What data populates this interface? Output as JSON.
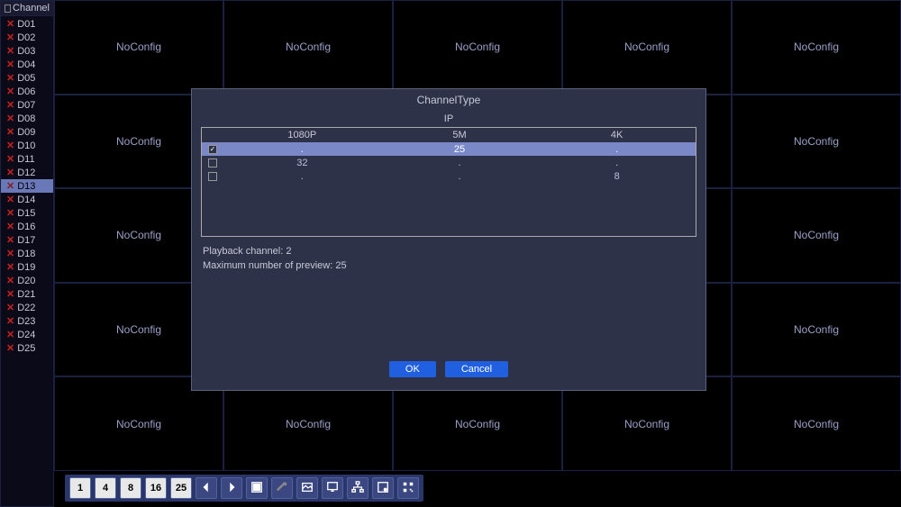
{
  "sidebar": {
    "title": "Channel",
    "items": [
      {
        "label": "D01",
        "selected": false
      },
      {
        "label": "D02",
        "selected": false
      },
      {
        "label": "D03",
        "selected": false
      },
      {
        "label": "D04",
        "selected": false
      },
      {
        "label": "D05",
        "selected": false
      },
      {
        "label": "D06",
        "selected": false
      },
      {
        "label": "D07",
        "selected": false
      },
      {
        "label": "D08",
        "selected": false
      },
      {
        "label": "D09",
        "selected": false
      },
      {
        "label": "D10",
        "selected": false
      },
      {
        "label": "D11",
        "selected": false
      },
      {
        "label": "D12",
        "selected": false
      },
      {
        "label": "D13",
        "selected": true
      },
      {
        "label": "D14",
        "selected": false
      },
      {
        "label": "D15",
        "selected": false
      },
      {
        "label": "D16",
        "selected": false
      },
      {
        "label": "D17",
        "selected": false
      },
      {
        "label": "D18",
        "selected": false
      },
      {
        "label": "D19",
        "selected": false
      },
      {
        "label": "D20",
        "selected": false
      },
      {
        "label": "D21",
        "selected": false
      },
      {
        "label": "D22",
        "selected": false
      },
      {
        "label": "D23",
        "selected": false
      },
      {
        "label": "D24",
        "selected": false
      },
      {
        "label": "D25",
        "selected": false
      }
    ]
  },
  "grid": {
    "cell_label": "NoConfig",
    "rows": 5,
    "cols": 5
  },
  "toolbar": {
    "items": [
      {
        "type": "num",
        "label": "1"
      },
      {
        "type": "num",
        "label": "4"
      },
      {
        "type": "num",
        "label": "8"
      },
      {
        "type": "num",
        "label": "16"
      },
      {
        "type": "num",
        "label": "25"
      },
      {
        "type": "icon",
        "name": "arrow-left-icon"
      },
      {
        "type": "icon",
        "name": "arrow-right-icon"
      },
      {
        "type": "icon",
        "name": "fullscreen-icon"
      },
      {
        "type": "icon",
        "name": "mic-icon"
      },
      {
        "type": "icon",
        "name": "image-icon"
      },
      {
        "type": "icon",
        "name": "monitor-icon"
      },
      {
        "type": "icon",
        "name": "network-icon"
      },
      {
        "type": "icon",
        "name": "disk-icon"
      },
      {
        "type": "icon",
        "name": "qr-icon"
      }
    ]
  },
  "modal": {
    "title": "ChannelType",
    "ip_label": "IP",
    "columns": [
      "1080P",
      "5M",
      "4K"
    ],
    "rows": [
      {
        "checked": true,
        "values": [
          ".",
          "25",
          "."
        ],
        "selected": true
      },
      {
        "checked": false,
        "values": [
          "32",
          ".",
          "."
        ],
        "selected": false
      },
      {
        "checked": false,
        "values": [
          ".",
          ".",
          "8"
        ],
        "selected": false
      }
    ],
    "playback_label": "Playback channel: 2",
    "max_preview_label": "Maximum number of preview: 25",
    "ok_label": "OK",
    "cancel_label": "Cancel"
  },
  "colors": {
    "background": "#000000",
    "border": "#1a2040",
    "text": "#c8c8d8",
    "modal_bg": "#2e3248",
    "selected_row": "#7a88c8",
    "button_bg": "#2060e0",
    "x_mark": "#cc2020"
  }
}
